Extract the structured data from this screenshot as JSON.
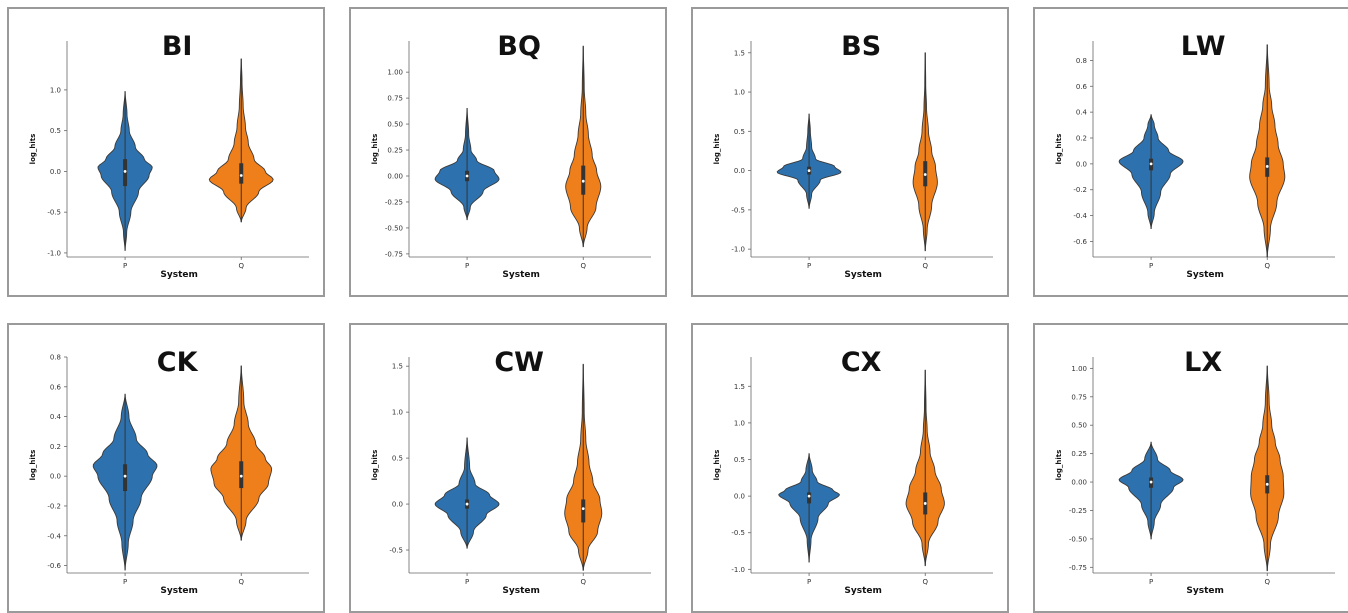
{
  "chart_data": [
    {
      "type": "violin",
      "title": "BI",
      "xlabel": "System",
      "ylabel": "log_hits",
      "categories": [
        "P",
        "Q"
      ],
      "ylim": [
        -1.05,
        1.6
      ],
      "yticks": [
        -1.0,
        -0.5,
        0.0,
        0.5,
        1.0
      ],
      "ytick_labels": [
        "-1.0",
        "-0.5",
        "0.0",
        "0.5",
        "1.0"
      ],
      "colors": [
        "#2d72ae",
        "#ef7f1a"
      ],
      "violins": [
        {
          "category": "P",
          "min": -0.97,
          "max": 0.98,
          "median": 0.0,
          "q1": -0.18,
          "q3": 0.15,
          "density": [
            [
              -0.97,
              0.003
            ],
            [
              -0.75,
              0.05
            ],
            [
              -0.5,
              0.18
            ],
            [
              -0.25,
              0.42
            ],
            [
              -0.05,
              0.75
            ],
            [
              0.05,
              0.85
            ],
            [
              0.15,
              0.6
            ],
            [
              0.3,
              0.32
            ],
            [
              0.5,
              0.13
            ],
            [
              0.7,
              0.06
            ],
            [
              0.98,
              0.003
            ]
          ]
        },
        {
          "category": "Q",
          "min": -0.62,
          "max": 1.38,
          "median": -0.05,
          "q1": -0.15,
          "q3": 0.1,
          "density": [
            [
              -0.62,
              0.003
            ],
            [
              -0.45,
              0.15
            ],
            [
              -0.25,
              0.55
            ],
            [
              -0.1,
              1.0
            ],
            [
              0.0,
              0.75
            ],
            [
              0.15,
              0.4
            ],
            [
              0.35,
              0.22
            ],
            [
              0.55,
              0.13
            ],
            [
              0.8,
              0.06
            ],
            [
              1.1,
              0.025
            ],
            [
              1.38,
              0.003
            ]
          ]
        }
      ]
    },
    {
      "type": "violin",
      "title": "BQ",
      "xlabel": "System",
      "ylabel": "log_hits",
      "categories": [
        "P",
        "Q"
      ],
      "ylim": [
        -0.78,
        1.3
      ],
      "yticks": [
        -0.75,
        -0.5,
        -0.25,
        0.0,
        0.25,
        0.5,
        0.75,
        1.0
      ],
      "ytick_labels": [
        "-0.75",
        "-0.50",
        "-0.25",
        "0.00",
        "0.25",
        "0.50",
        "0.75",
        "1.00"
      ],
      "colors": [
        "#2d72ae",
        "#ef7f1a"
      ],
      "violins": [
        {
          "category": "P",
          "min": -0.42,
          "max": 0.65,
          "median": 0.0,
          "q1": -0.05,
          "q3": 0.05,
          "density": [
            [
              -0.42,
              0.003
            ],
            [
              -0.3,
              0.1
            ],
            [
              -0.15,
              0.5
            ],
            [
              -0.03,
              1.0
            ],
            [
              0.05,
              0.85
            ],
            [
              0.15,
              0.3
            ],
            [
              0.25,
              0.12
            ],
            [
              0.4,
              0.05
            ],
            [
              0.65,
              0.003
            ]
          ]
        },
        {
          "category": "Q",
          "min": -0.68,
          "max": 1.25,
          "median": -0.05,
          "q1": -0.18,
          "q3": 0.1,
          "density": [
            [
              -0.68,
              0.003
            ],
            [
              -0.5,
              0.12
            ],
            [
              -0.3,
              0.4
            ],
            [
              -0.1,
              0.55
            ],
            [
              0.05,
              0.42
            ],
            [
              0.2,
              0.28
            ],
            [
              0.4,
              0.16
            ],
            [
              0.6,
              0.08
            ],
            [
              0.85,
              0.03
            ],
            [
              1.25,
              0.003
            ]
          ]
        }
      ]
    },
    {
      "type": "violin",
      "title": "BS",
      "xlabel": "System",
      "ylabel": "log_hits",
      "categories": [
        "P",
        "Q"
      ],
      "ylim": [
        -1.1,
        1.65
      ],
      "yticks": [
        -1.0,
        -0.5,
        0.0,
        0.5,
        1.0,
        1.5
      ],
      "ytick_labels": [
        "-1.0",
        "-0.5",
        "0.0",
        "0.5",
        "1.0",
        "1.5"
      ],
      "colors": [
        "#2d72ae",
        "#ef7f1a"
      ],
      "violins": [
        {
          "category": "P",
          "min": -0.48,
          "max": 0.72,
          "median": 0.0,
          "q1": -0.05,
          "q3": 0.05,
          "density": [
            [
              -0.48,
              0.003
            ],
            [
              -0.3,
              0.08
            ],
            [
              -0.12,
              0.35
            ],
            [
              -0.02,
              1.0
            ],
            [
              0.05,
              0.8
            ],
            [
              0.15,
              0.2
            ],
            [
              0.3,
              0.08
            ],
            [
              0.5,
              0.04
            ],
            [
              0.72,
              0.003
            ]
          ]
        },
        {
          "category": "Q",
          "min": -1.02,
          "max": 1.5,
          "median": -0.05,
          "q1": -0.2,
          "q3": 0.12,
          "density": [
            [
              -1.02,
              0.003
            ],
            [
              -0.75,
              0.06
            ],
            [
              -0.45,
              0.2
            ],
            [
              -0.15,
              0.38
            ],
            [
              0.05,
              0.32
            ],
            [
              0.25,
              0.2
            ],
            [
              0.5,
              0.1
            ],
            [
              0.8,
              0.04
            ],
            [
              1.1,
              0.015
            ],
            [
              1.5,
              0.003
            ]
          ]
        }
      ]
    },
    {
      "type": "violin",
      "title": "LW",
      "xlabel": "System",
      "ylabel": "log_hits",
      "categories": [
        "P",
        "Q"
      ],
      "ylim": [
        -0.72,
        0.95
      ],
      "yticks": [
        -0.6,
        -0.4,
        -0.2,
        0.0,
        0.2,
        0.4,
        0.6,
        0.8
      ],
      "ytick_labels": [
        "-0.6",
        "-0.4",
        "-0.2",
        "0.0",
        "0.2",
        "0.4",
        "0.6",
        "0.8"
      ],
      "colors": [
        "#2d72ae",
        "#ef7f1a"
      ],
      "violins": [
        {
          "category": "P",
          "min": -0.5,
          "max": 0.38,
          "median": 0.0,
          "q1": -0.05,
          "q3": 0.04,
          "density": [
            [
              -0.5,
              0.003
            ],
            [
              -0.38,
              0.1
            ],
            [
              -0.22,
              0.3
            ],
            [
              -0.08,
              0.6
            ],
            [
              0.02,
              1.0
            ],
            [
              0.1,
              0.55
            ],
            [
              0.2,
              0.22
            ],
            [
              0.3,
              0.1
            ],
            [
              0.38,
              0.003
            ]
          ]
        },
        {
          "category": "Q",
          "min": -0.72,
          "max": 0.92,
          "median": -0.02,
          "q1": -0.1,
          "q3": 0.05,
          "density": [
            [
              -0.72,
              0.003
            ],
            [
              -0.5,
              0.1
            ],
            [
              -0.3,
              0.3
            ],
            [
              -0.1,
              0.55
            ],
            [
              0.0,
              0.5
            ],
            [
              0.15,
              0.34
            ],
            [
              0.3,
              0.24
            ],
            [
              0.45,
              0.14
            ],
            [
              0.6,
              0.06
            ],
            [
              0.92,
              0.003
            ]
          ]
        }
      ]
    },
    {
      "type": "violin",
      "title": "CK",
      "xlabel": "System",
      "ylabel": "log_hits",
      "categories": [
        "P",
        "Q"
      ],
      "ylim": [
        -0.65,
        0.8
      ],
      "yticks": [
        -0.6,
        -0.4,
        -0.2,
        0.0,
        0.2,
        0.4,
        0.6,
        0.8
      ],
      "ytick_labels": [
        "-0.6",
        "-0.4",
        "-0.2",
        "0.0",
        "0.2",
        "0.4",
        "0.6",
        "0.8"
      ],
      "colors": [
        "#2d72ae",
        "#ef7f1a"
      ],
      "violins": [
        {
          "category": "P",
          "min": -0.63,
          "max": 0.55,
          "median": 0.0,
          "q1": -0.1,
          "q3": 0.08,
          "density": [
            [
              -0.63,
              0.003
            ],
            [
              -0.45,
              0.1
            ],
            [
              -0.3,
              0.25
            ],
            [
              -0.15,
              0.5
            ],
            [
              0.0,
              0.85
            ],
            [
              0.07,
              1.0
            ],
            [
              0.15,
              0.7
            ],
            [
              0.25,
              0.35
            ],
            [
              0.4,
              0.12
            ],
            [
              0.55,
              0.003
            ]
          ]
        },
        {
          "category": "Q",
          "min": -0.43,
          "max": 0.74,
          "median": 0.0,
          "q1": -0.08,
          "q3": 0.1,
          "density": [
            [
              -0.43,
              0.003
            ],
            [
              -0.3,
              0.15
            ],
            [
              -0.15,
              0.55
            ],
            [
              -0.05,
              0.85
            ],
            [
              0.05,
              0.95
            ],
            [
              0.12,
              0.75
            ],
            [
              0.22,
              0.45
            ],
            [
              0.35,
              0.22
            ],
            [
              0.5,
              0.08
            ],
            [
              0.74,
              0.003
            ]
          ]
        }
      ]
    },
    {
      "type": "violin",
      "title": "CW",
      "xlabel": "System",
      "ylabel": "log_hits",
      "categories": [
        "P",
        "Q"
      ],
      "ylim": [
        -0.75,
        1.6
      ],
      "yticks": [
        -0.5,
        0.0,
        0.5,
        1.0,
        1.5
      ],
      "ytick_labels": [
        "-0.5",
        "0.0",
        "0.5",
        "1.0",
        "1.5"
      ],
      "colors": [
        "#2d72ae",
        "#ef7f1a"
      ],
      "violins": [
        {
          "category": "P",
          "min": -0.48,
          "max": 0.72,
          "median": 0.0,
          "q1": -0.05,
          "q3": 0.05,
          "density": [
            [
              -0.48,
              0.003
            ],
            [
              -0.3,
              0.2
            ],
            [
              -0.12,
              0.6
            ],
            [
              0.0,
              1.0
            ],
            [
              0.1,
              0.7
            ],
            [
              0.22,
              0.25
            ],
            [
              0.4,
              0.08
            ],
            [
              0.72,
              0.003
            ]
          ]
        },
        {
          "category": "Q",
          "min": -0.72,
          "max": 1.52,
          "median": -0.05,
          "q1": -0.2,
          "q3": 0.05,
          "density": [
            [
              -0.72,
              0.003
            ],
            [
              -0.5,
              0.15
            ],
            [
              -0.3,
              0.45
            ],
            [
              -0.1,
              0.58
            ],
            [
              0.05,
              0.52
            ],
            [
              0.25,
              0.3
            ],
            [
              0.45,
              0.18
            ],
            [
              0.7,
              0.08
            ],
            [
              1.0,
              0.03
            ],
            [
              1.52,
              0.003
            ]
          ]
        }
      ]
    },
    {
      "type": "violin",
      "title": "CX",
      "xlabel": "System",
      "ylabel": "log_hits",
      "categories": [
        "P",
        "Q"
      ],
      "ylim": [
        -1.05,
        1.9
      ],
      "yticks": [
        -1.0,
        -0.5,
        0.0,
        0.5,
        1.0,
        1.5
      ],
      "ytick_labels": [
        "-1.0",
        "-0.5",
        "0.0",
        "0.5",
        "1.0",
        "1.5"
      ],
      "colors": [
        "#2d72ae",
        "#ef7f1a"
      ],
      "violins": [
        {
          "category": "P",
          "min": -0.9,
          "max": 0.58,
          "median": 0.0,
          "q1": -0.1,
          "q3": 0.05,
          "density": [
            [
              -0.9,
              0.003
            ],
            [
              -0.6,
              0.06
            ],
            [
              -0.3,
              0.28
            ],
            [
              -0.1,
              0.6
            ],
            [
              0.02,
              0.95
            ],
            [
              0.08,
              0.75
            ],
            [
              0.2,
              0.25
            ],
            [
              0.35,
              0.1
            ],
            [
              0.58,
              0.003
            ]
          ]
        },
        {
          "category": "Q",
          "min": -0.95,
          "max": 1.72,
          "median": -0.1,
          "q1": -0.25,
          "q3": 0.05,
          "density": [
            [
              -0.95,
              0.003
            ],
            [
              -0.65,
              0.1
            ],
            [
              -0.35,
              0.4
            ],
            [
              -0.1,
              0.6
            ],
            [
              0.1,
              0.5
            ],
            [
              0.35,
              0.3
            ],
            [
              0.6,
              0.15
            ],
            [
              0.9,
              0.06
            ],
            [
              1.2,
              0.025
            ],
            [
              1.72,
              0.003
            ]
          ]
        }
      ]
    },
    {
      "type": "violin",
      "title": "LX",
      "xlabel": "System",
      "ylabel": "log_hits",
      "categories": [
        "P",
        "Q"
      ],
      "ylim": [
        -0.8,
        1.1
      ],
      "yticks": [
        -0.75,
        -0.5,
        -0.25,
        0.0,
        0.25,
        0.5,
        0.75,
        1.0
      ],
      "ytick_labels": [
        "-0.75",
        "-0.50",
        "-0.25",
        "0.00",
        "0.25",
        "0.50",
        "0.75",
        "1.00"
      ],
      "colors": [
        "#2d72ae",
        "#ef7f1a"
      ],
      "violins": [
        {
          "category": "P",
          "min": -0.5,
          "max": 0.35,
          "median": 0.0,
          "q1": -0.05,
          "q3": 0.04,
          "density": [
            [
              -0.5,
              0.003
            ],
            [
              -0.35,
              0.1
            ],
            [
              -0.2,
              0.3
            ],
            [
              -0.05,
              0.7
            ],
            [
              0.02,
              1.0
            ],
            [
              0.1,
              0.6
            ],
            [
              0.2,
              0.2
            ],
            [
              0.35,
              0.003
            ]
          ]
        },
        {
          "category": "Q",
          "min": -0.78,
          "max": 1.02,
          "median": -0.02,
          "q1": -0.1,
          "q3": 0.06,
          "density": [
            [
              -0.78,
              0.003
            ],
            [
              -0.55,
              0.1
            ],
            [
              -0.3,
              0.35
            ],
            [
              -0.1,
              0.52
            ],
            [
              0.05,
              0.5
            ],
            [
              0.2,
              0.4
            ],
            [
              0.35,
              0.25
            ],
            [
              0.5,
              0.14
            ],
            [
              0.7,
              0.06
            ],
            [
              1.02,
              0.003
            ]
          ]
        }
      ]
    }
  ]
}
